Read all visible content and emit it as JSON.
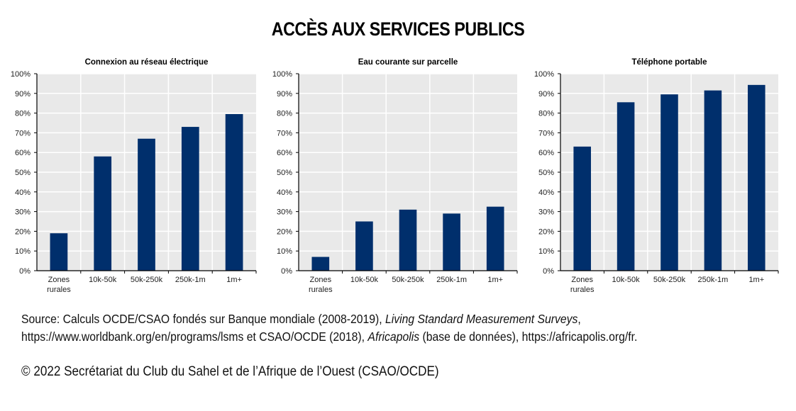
{
  "title": "ACCÈS AUX SERVICES PUBLICS",
  "chart_data": [
    {
      "type": "bar",
      "title": "Connexion au réseau électrique",
      "categories": [
        "Zones rurales",
        "10k-50k",
        "50k-250k",
        "250k-1m",
        "1m+"
      ],
      "values": [
        19,
        58,
        67,
        73,
        79.5
      ],
      "xlabel": "",
      "ylabel": "",
      "ylim": [
        0,
        100
      ],
      "yticks": [
        "0%",
        "10%",
        "20%",
        "30%",
        "40%",
        "50%",
        "60%",
        "70%",
        "80%",
        "90%",
        "100%"
      ],
      "grid": true,
      "color": "#002F6C"
    },
    {
      "type": "bar",
      "title": "Eau courante sur parcelle",
      "categories": [
        "Zones rurales",
        "10k-50k",
        "50k-250k",
        "250k-1m",
        "1m+"
      ],
      "values": [
        7,
        25,
        31,
        29,
        32.5
      ],
      "xlabel": "",
      "ylabel": "",
      "ylim": [
        0,
        100
      ],
      "yticks": [
        "0%",
        "10%",
        "20%",
        "30%",
        "40%",
        "50%",
        "60%",
        "70%",
        "80%",
        "90%",
        "100%"
      ],
      "grid": true,
      "color": "#002F6C"
    },
    {
      "type": "bar",
      "title": "Téléphone portable",
      "categories": [
        "Zones rurales",
        "10k-50k",
        "50k-250k",
        "250k-1m",
        "1m+"
      ],
      "values": [
        63,
        85.5,
        89.5,
        91.5,
        94.3
      ],
      "xlabel": "",
      "ylabel": "",
      "ylim": [
        0,
        100
      ],
      "yticks": [
        "0%",
        "10%",
        "20%",
        "30%",
        "40%",
        "50%",
        "60%",
        "70%",
        "80%",
        "90%",
        "100%"
      ],
      "grid": true,
      "color": "#002F6C"
    }
  ],
  "source": {
    "line1_a": "Source: Calculs OCDE/CSAO fondés sur Banque mondiale (2008-2019), ",
    "line1_italic": "Living Standard Measurement Surveys",
    "line1_b": ",",
    "line2_a": "https://www.worldbank.org/en/programs/lsms et CSAO/OCDE (2018), ",
    "line2_italic": "Africapolis",
    "line2_b": " (base de données), https://africapolis.org/fr."
  },
  "copyright": "© 2022 Secrétariat du Club du Sahel et de l’Afrique de l’Ouest (CSAO/OCDE)"
}
